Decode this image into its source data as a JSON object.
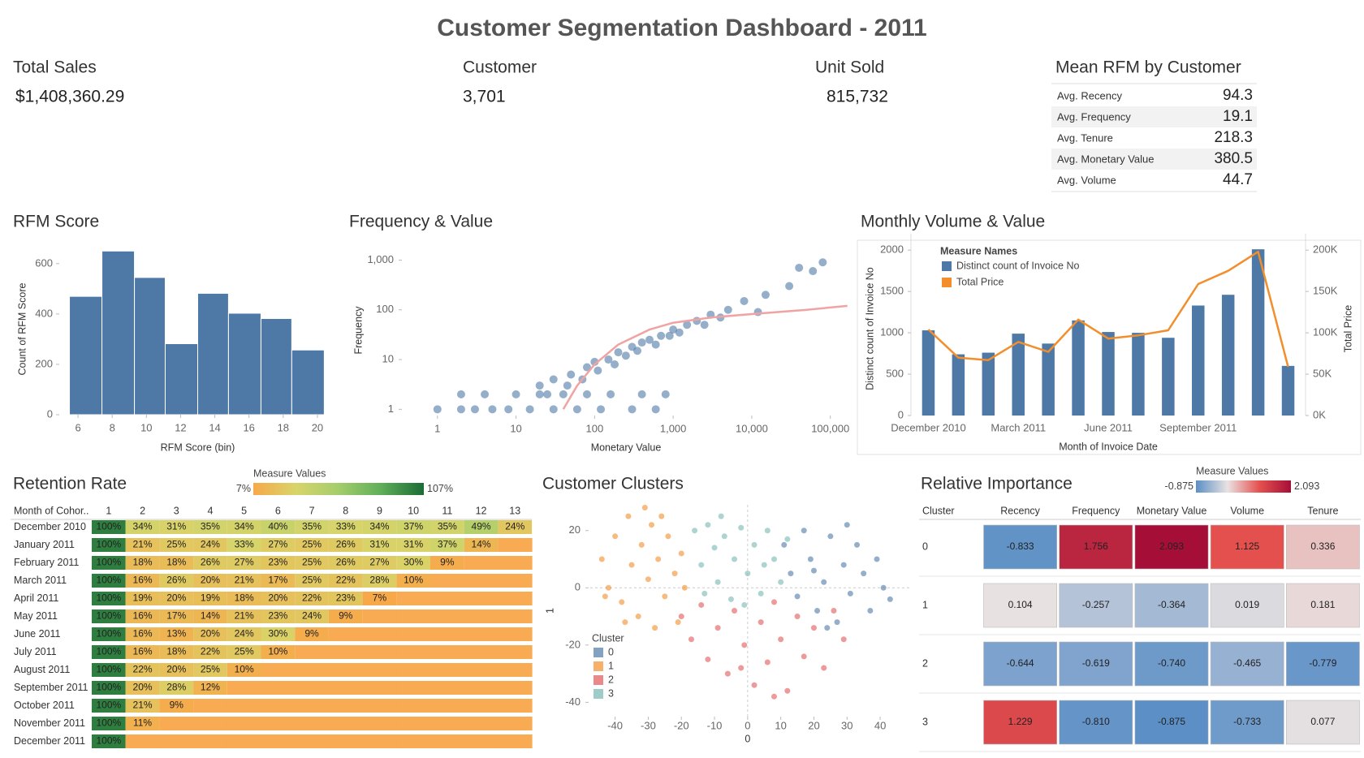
{
  "title": "Customer Segmentation Dashboard - 2011",
  "kpis": [
    {
      "label": "Total Sales",
      "value": "$1,408,360.29"
    },
    {
      "label": "Customer",
      "value": "3,701"
    },
    {
      "label": "Unit Sold",
      "value": "815,732"
    }
  ],
  "mean_rfm": {
    "title": "Mean RFM by Customer",
    "rows": [
      {
        "label": "Avg. Recency",
        "value": 94.3
      },
      {
        "label": "Avg. Frequency",
        "value": 19.1
      },
      {
        "label": "Avg. Tenure",
        "value": 218.3
      },
      {
        "label": "Avg. Monetary Value",
        "value": 380.5
      },
      {
        "label": "Avg. Volume",
        "value": 44.7
      }
    ]
  },
  "chart_data": [
    {
      "type": "histogram",
      "title": "RFM Score",
      "bins": [
        5.5,
        7.4,
        9.3,
        11.1,
        13,
        14.8,
        16.7,
        18.5,
        20.4
      ],
      "values": [
        470,
        650,
        545,
        282,
        482,
        403,
        382,
        257
      ],
      "color": "#4e79a7",
      "xlim": [
        5,
        21
      ],
      "xticks": [
        6,
        8,
        10,
        12,
        14,
        16,
        18,
        20
      ],
      "ylim": [
        0,
        680
      ],
      "yticks": [
        0,
        200,
        400,
        600
      ],
      "xlabel": "RFM Score (bin)",
      "ylabel": "Count of RFM Score"
    },
    {
      "type": "scatter",
      "title": "Frequency & Value",
      "xscale": "log",
      "yscale": "log",
      "xlim": [
        0.37,
        170000
      ],
      "ylim": [
        0.75,
        2000
      ],
      "xticks": [
        1,
        10,
        100,
        {
          "value": 1000,
          "label": "1,000"
        },
        {
          "value": 10000,
          "label": "10,000"
        },
        {
          "value": 100000,
          "label": "100,000"
        }
      ],
      "yticks": [
        1,
        10,
        100,
        {
          "value": 1000,
          "label": "1,000"
        }
      ],
      "xlabel": "Monetary Value",
      "ylabel": "Frequency",
      "series": [
        {
          "color": "#4e79a7",
          "x": [
            1,
            2,
            3,
            5,
            8,
            15,
            30,
            60,
            120,
            300,
            600,
            2,
            4,
            10,
            20,
            40,
            80,
            160,
            400,
            800,
            20,
            30,
            50,
            80,
            100,
            150,
            200,
            300,
            400,
            500,
            700,
            1000,
            1500,
            2000,
            3000,
            5000,
            8000,
            15000,
            30000,
            60000,
            25,
            45,
            70,
            110,
            180,
            250,
            350,
            600,
            900,
            1200,
            2500,
            4000,
            12000,
            40000,
            80000
          ],
          "values": [
            1,
            1,
            1,
            1,
            1,
            1,
            1,
            1,
            1,
            1,
            1,
            2,
            2,
            2,
            2,
            2,
            2,
            2,
            2,
            2,
            3,
            4,
            5,
            7,
            9,
            10,
            14,
            18,
            22,
            25,
            30,
            40,
            50,
            60,
            80,
            100,
            150,
            200,
            300,
            600,
            2,
            3,
            4,
            6,
            8,
            12,
            15,
            20,
            30,
            35,
            50,
            70,
            90,
            700,
            900
          ]
        }
      ],
      "trend": {
        "color": "#f0a3a3",
        "x": [
          40,
          60,
          100,
          200,
          500,
          1000,
          3000,
          10000,
          50000,
          165000
        ],
        "values": [
          1,
          3,
          8,
          20,
          40,
          55,
          70,
          82,
          100,
          120
        ]
      }
    },
    {
      "type": "combo",
      "title": "Monthly Volume & Value",
      "categories": [
        "December 2010",
        null,
        null,
        "March 2011",
        null,
        null,
        "June 2011",
        null,
        null,
        "September 2011",
        null,
        null,
        null
      ],
      "series": [
        {
          "name": "Distinct count of Invoice No",
          "type": "bar",
          "color": "#4e79a7",
          "values": [
            1030,
            740,
            760,
            990,
            870,
            1150,
            1010,
            1000,
            940,
            1330,
            1460,
            2010,
            600
          ]
        },
        {
          "name": "Total Price",
          "type": "line",
          "axis": "y2",
          "color": "#f28e2b",
          "values": [
            104000,
            70000,
            67000,
            89000,
            77000,
            116000,
            93000,
            97000,
            103000,
            159000,
            175000,
            198000,
            59000
          ]
        }
      ],
      "ylim": [
        0,
        2100
      ],
      "yticks": [
        0,
        500,
        1000,
        1500,
        2000
      ],
      "y2lim": [
        0,
        210000
      ],
      "y2ticks": [
        {
          "value": 0,
          "label": "0K"
        },
        {
          "value": 50000,
          "label": "50K"
        },
        {
          "value": 100000,
          "label": "100K"
        },
        {
          "value": 150000,
          "label": "150K"
        },
        {
          "value": 200000,
          "label": "200K"
        }
      ],
      "xlabel": "Month of Invoice Date",
      "ylabel": "Distinct count of Invoice No",
      "y2label": "Total Price",
      "legend_title": "Measure Names",
      "legend": "top-left"
    },
    {
      "type": "heatmap",
      "title": "Retention Rate",
      "row_header": "Month of Cohor..",
      "columns": [
        1,
        2,
        3,
        4,
        5,
        6,
        7,
        8,
        9,
        10,
        11,
        12,
        13
      ],
      "rows": [
        "December 2010",
        "January 2011",
        "February 2011",
        "March 2011",
        "April 2011",
        "May 2011",
        "June 2011",
        "July 2011",
        "August 2011",
        "September 2011",
        "October 2011",
        "November 2011",
        "December 2011"
      ],
      "values": [
        [
          100,
          34,
          31,
          35,
          34,
          40,
          35,
          33,
          34,
          37,
          35,
          49,
          24
        ],
        [
          100,
          21,
          25,
          24,
          33,
          27,
          25,
          26,
          31,
          31,
          37,
          14
        ],
        [
          100,
          18,
          18,
          26,
          27,
          23,
          25,
          26,
          27,
          30,
          9
        ],
        [
          100,
          16,
          26,
          20,
          21,
          17,
          25,
          22,
          28,
          10
        ],
        [
          100,
          19,
          20,
          19,
          18,
          20,
          22,
          23,
          7
        ],
        [
          100,
          16,
          17,
          14,
          21,
          23,
          24,
          9
        ],
        [
          100,
          16,
          13,
          20,
          24,
          30,
          9
        ],
        [
          100,
          16,
          18,
          22,
          25,
          10
        ],
        [
          100,
          22,
          20,
          25,
          10
        ],
        [
          100,
          20,
          28,
          12
        ],
        [
          100,
          21,
          9
        ],
        [
          100,
          11
        ],
        [
          100
        ]
      ],
      "value_labels": [
        [
          "100%",
          "34%",
          "31%",
          "35%",
          "34%",
          "40%",
          "35%",
          "33%",
          "34%",
          "37%",
          "35%",
          "49%",
          "24%"
        ],
        [
          "100%",
          "21%",
          "25%",
          "24%",
          "33%",
          "27%",
          "25%",
          "26%",
          "31%",
          "31%",
          "37%",
          "14%"
        ],
        [
          "100%",
          "18%",
          "18%",
          "26%",
          "27%",
          "23%",
          "25%",
          "26%",
          "27%",
          "30%",
          "9%"
        ],
        [
          "100%",
          "16%",
          "26%",
          "20%",
          "21%",
          "17%",
          "25%",
          "22%",
          "28%",
          "10%"
        ],
        [
          "100%",
          "19%",
          "20%",
          "19%",
          "18%",
          "20%",
          "22%",
          "23%",
          "7%"
        ],
        [
          "100%",
          "16%",
          "17%",
          "14%",
          "21%",
          "23%",
          "24%",
          "9%"
        ],
        [
          "100%",
          "16%",
          "13%",
          "20%",
          "24%",
          "30%",
          "9%"
        ],
        [
          "100%",
          "16%",
          "18%",
          "22%",
          "25%",
          "10%"
        ],
        [
          "100%",
          "22%",
          "20%",
          "25%",
          "10%"
        ],
        [
          "100%",
          "20%",
          "28%",
          "12%"
        ],
        [
          "100%",
          "21%",
          "9%"
        ],
        [
          "100%",
          "11%"
        ],
        [
          "100%"
        ]
      ],
      "color_legend": {
        "title": "Measure Values",
        "range": [
          {
            "value": 7,
            "label": "7%"
          },
          {
            "value": 107,
            "label": "107%"
          }
        ]
      },
      "colors": [
        "#f7a94a",
        "#d8d46a",
        "#a4cd6c",
        "#5fae5a",
        "#1b6b35"
      ],
      "missing_color": "#f8ab52"
    },
    {
      "type": "scatter",
      "title": "Customer Clusters",
      "xlim": [
        -47.5,
        48.8
      ],
      "ylim": [
        -45,
        29
      ],
      "xticks": [
        -40,
        -30,
        -20,
        -10,
        0,
        10,
        20,
        30,
        40
      ],
      "yticks": [
        -40,
        -20,
        0,
        20
      ],
      "xlabel": "0",
      "ylabel": "1",
      "zero_lines": true,
      "legend_title": "Cluster",
      "legend": "bottom-left",
      "series": [
        {
          "name": "0",
          "color": "#4e79a7",
          "x": [
            11,
            13,
            15,
            17,
            19,
            21,
            23,
            25,
            27,
            29,
            31,
            33,
            35,
            37,
            39,
            41,
            43,
            30,
            24,
            20
          ],
          "values": [
            15,
            5,
            -3,
            20,
            10,
            -8,
            2,
            18,
            -12,
            8,
            -2,
            15,
            5,
            -8,
            10,
            0,
            -4,
            22,
            -14,
            6
          ]
        },
        {
          "name": "1",
          "color": "#f28e2b",
          "x": [
            -44,
            -42,
            -40,
            -38,
            -36,
            -35,
            -33,
            -32,
            -30,
            -29,
            -28,
            -27,
            -25,
            -24,
            -22,
            -21,
            -20,
            -19,
            -37,
            -31,
            -26,
            -43
          ],
          "values": [
            10,
            0,
            18,
            -5,
            25,
            8,
            -10,
            15,
            3,
            22,
            -14,
            10,
            -3,
            18,
            5,
            -12,
            12,
            0,
            -12,
            28,
            25,
            -3
          ]
        },
        {
          "name": "2",
          "color": "#e15759",
          "x": [
            -20,
            -17,
            -14,
            -12,
            -9,
            -6,
            -4,
            -1,
            2,
            4,
            6,
            8,
            10,
            12,
            15,
            17,
            20,
            23,
            26,
            29,
            8,
            -2
          ],
          "values": [
            -10,
            -18,
            -6,
            -25,
            -14,
            -30,
            -8,
            -20,
            -34,
            -12,
            -26,
            -5,
            -18,
            -36,
            -10,
            -24,
            -14,
            -28,
            -8,
            -18,
            -38,
            -28
          ]
        },
        {
          "name": "3",
          "color": "#76b7b2",
          "x": [
            -16,
            -14,
            -12,
            -10,
            -9,
            -7,
            -5,
            -4,
            -2,
            0,
            2,
            4,
            6,
            8,
            10,
            12,
            -13,
            -1,
            5,
            -8
          ],
          "values": [
            20,
            8,
            22,
            14,
            2,
            18,
            -4,
            10,
            21,
            5,
            15,
            -2,
            20,
            10,
            2,
            17,
            -2,
            -6,
            8,
            25
          ]
        }
      ]
    },
    {
      "type": "heatmap",
      "title": "Relative Importance",
      "row_header": "Cluster",
      "columns": [
        "Recency",
        "Frequency",
        "Monetary Value",
        "Volume",
        "Tenure"
      ],
      "rows": [
        0,
        1,
        2,
        3
      ],
      "values": [
        [
          -0.833,
          1.756,
          2.093,
          1.125,
          0.336
        ],
        [
          0.104,
          -0.257,
          -0.364,
          0.019,
          0.181
        ],
        [
          -0.644,
          -0.619,
          -0.74,
          -0.465,
          -0.779
        ],
        [
          1.229,
          -0.81,
          -0.875,
          -0.733,
          0.077
        ]
      ],
      "value_labels": [
        [
          "-0.833",
          "1.756",
          "2.093",
          "1.125",
          "0.336"
        ],
        [
          "0.104",
          "-0.257",
          "-0.364",
          "0.019",
          "0.181"
        ],
        [
          "-0.644",
          "-0.619",
          "-0.740",
          "-0.465",
          "-0.779"
        ],
        [
          "1.229",
          "-0.810",
          "-0.875",
          "-0.733",
          "0.077"
        ]
      ],
      "color_legend": {
        "title": "Measure Values",
        "range": [
          -0.875,
          2.093
        ]
      },
      "colors": [
        "#5b8fc6",
        "#e9e2e2",
        "#e4514f",
        "#a50f37"
      ]
    }
  ]
}
